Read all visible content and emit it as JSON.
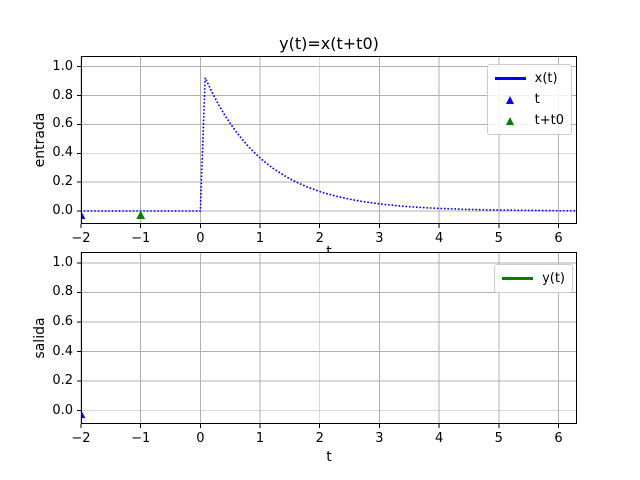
{
  "figure": {
    "title": "y(t)=x(t+t0)",
    "background": "#ffffff",
    "colors": {
      "blue": "#0000ff",
      "green": "#008000",
      "grid": "#b0b0b0",
      "spine": "#000000",
      "text": "#000000",
      "legend_border": "#cccccc"
    }
  },
  "chart_data": [
    {
      "type": "line",
      "id": "entrada",
      "title": "y(t)=x(t+t0)",
      "xlabel": "t",
      "ylabel": "entrada",
      "xlim": [
        -2,
        6.31
      ],
      "ylim": [
        -0.09,
        1.074
      ],
      "xticks": [
        -2,
        -1,
        0,
        1,
        2,
        3,
        4,
        5,
        6
      ],
      "yticks": [
        0.0,
        0.2,
        0.4,
        0.6,
        0.8,
        1.0
      ],
      "grid": true,
      "legend": {
        "position": "upper right",
        "entries": [
          {
            "label": "x(t)",
            "handle": "line-solid",
            "color": "#0000ff"
          },
          {
            "label": "t",
            "handle": "marker-triangle-up",
            "color": "#0000ff"
          },
          {
            "label": "t+t0",
            "handle": "marker-triangle-up",
            "color": "#008000"
          }
        ]
      },
      "series": [
        {
          "name": "x(t)",
          "color": "#0000ff",
          "style": "dotted",
          "x": [
            -2.0,
            -1.9,
            -1.8,
            -1.7,
            -1.6,
            -1.5,
            -1.4,
            -1.3,
            -1.2,
            -1.1,
            -1.0,
            -0.9,
            -0.8,
            -0.7,
            -0.6,
            -0.5,
            -0.4,
            -0.3,
            -0.2,
            -0.1,
            0.0,
            0.08,
            0.2,
            0.3,
            0.4,
            0.5,
            0.6,
            0.7,
            0.8,
            0.9,
            1.0,
            1.1,
            1.2,
            1.3,
            1.4,
            1.5,
            1.6,
            1.7,
            1.8,
            1.9,
            2.0,
            2.1,
            2.2,
            2.3,
            2.4,
            2.5,
            2.6,
            2.7,
            2.8,
            2.9,
            3.0,
            3.1,
            3.2,
            3.3,
            3.4,
            3.5,
            3.6,
            3.7,
            3.8,
            3.9,
            4.0,
            4.1,
            4.2,
            4.3,
            4.4,
            4.5,
            4.6,
            4.7,
            4.8,
            4.9,
            5.0,
            5.1,
            5.2,
            5.3,
            5.4,
            5.5,
            5.6,
            5.7,
            5.8,
            5.9,
            6.0,
            6.1,
            6.2,
            6.3
          ],
          "y": [
            0,
            0,
            0,
            0,
            0,
            0,
            0,
            0,
            0,
            0,
            0,
            0,
            0,
            0,
            0,
            0,
            0,
            0,
            0,
            0,
            0,
            0.923,
            0.819,
            0.741,
            0.67,
            0.607,
            0.549,
            0.497,
            0.449,
            0.407,
            0.368,
            0.333,
            0.301,
            0.273,
            0.247,
            0.223,
            0.202,
            0.183,
            0.165,
            0.15,
            0.135,
            0.122,
            0.111,
            0.1,
            0.091,
            0.082,
            0.074,
            0.067,
            0.061,
            0.055,
            0.05,
            0.045,
            0.041,
            0.037,
            0.033,
            0.03,
            0.027,
            0.025,
            0.022,
            0.02,
            0.018,
            0.017,
            0.015,
            0.014,
            0.012,
            0.011,
            0.01,
            0.009,
            0.008,
            0.008,
            0.007,
            0.006,
            0.006,
            0.005,
            0.005,
            0.004,
            0.004,
            0.003,
            0.003,
            0.003,
            0.002,
            0.002,
            0.002,
            0.002
          ]
        }
      ],
      "markers": [
        {
          "name": "t",
          "x": -2,
          "y": -0.03,
          "marker": "triangle-up",
          "color": "#0000ff"
        },
        {
          "name": "t+t0",
          "x": -1,
          "y": -0.03,
          "marker": "triangle-up",
          "color": "#008000"
        }
      ]
    },
    {
      "type": "line",
      "id": "salida",
      "title": "",
      "xlabel": "t",
      "ylabel": "salida",
      "xlim": [
        -2,
        6.31
      ],
      "ylim": [
        -0.09,
        1.074
      ],
      "xticks": [
        -2,
        -1,
        0,
        1,
        2,
        3,
        4,
        5,
        6
      ],
      "yticks": [
        0.0,
        0.2,
        0.4,
        0.6,
        0.8,
        1.0
      ],
      "grid": true,
      "legend": {
        "position": "upper right",
        "entries": [
          {
            "label": "y(t)",
            "handle": "line-solid",
            "color": "#008000"
          }
        ]
      },
      "series": [],
      "markers": [
        {
          "name": "y-current-point",
          "x": -2,
          "y": -0.025,
          "marker": "triangle-up",
          "color": "#0000ff"
        }
      ]
    }
  ]
}
